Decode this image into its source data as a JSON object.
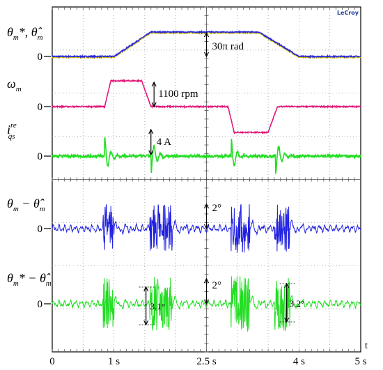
{
  "chart_data": {
    "type": "line",
    "brand": "LeCroy",
    "x_axis": {
      "label": "t",
      "unit": "s",
      "range": [
        0,
        5
      ],
      "ticks": [
        "0",
        "1 s",
        "2.5 s",
        "4 s",
        "5 s"
      ]
    },
    "grid": true,
    "channels": [
      {
        "id": "theta",
        "label_main": "θ",
        "label_sub": "m",
        "label_rest": "*, θ̂",
        "label_sub2": "m",
        "color": "#2a2ad8",
        "color2": "#d9c400",
        "zero_label": "0",
        "annotation": "30π rad",
        "profile": [
          [
            0,
            0
          ],
          [
            1.0,
            0
          ],
          [
            1.6,
            1
          ],
          [
            3.35,
            1
          ],
          [
            4.0,
            0
          ],
          [
            5,
            0
          ]
        ],
        "profile_unit": "fraction of 30π rad"
      },
      {
        "id": "omega",
        "label_main": "ω",
        "label_sub": "m",
        "color": "#e0197a",
        "zero_label": "0",
        "annotation": "1100 rpm",
        "profile": [
          [
            0,
            0
          ],
          [
            0.85,
            0
          ],
          [
            0.95,
            1
          ],
          [
            1.45,
            1
          ],
          [
            1.6,
            0
          ],
          [
            2.85,
            0
          ],
          [
            2.95,
            -1
          ],
          [
            3.5,
            -1
          ],
          [
            3.65,
            0
          ],
          [
            5,
            0
          ]
        ],
        "profile_unit": "fraction of 1100 rpm"
      },
      {
        "id": "iqs",
        "label_main": "i",
        "label_sub": "qs",
        "label_sup": "re",
        "color": "#22dd22",
        "zero_label": "0",
        "annotation": "4 A",
        "spikes_s": [
          0.85,
          1.6,
          2.9,
          3.62
        ]
      },
      {
        "id": "err1",
        "label_main": "θ",
        "label_sub": "m",
        "label_rest": " − θ̂",
        "label_sub2": "m",
        "color": "#2020e0",
        "zero_label": "0",
        "annotation": "2°",
        "bursts_s": [
          [
            0.82,
            1.0
          ],
          [
            1.58,
            1.95
          ],
          [
            2.9,
            3.2
          ],
          [
            3.6,
            3.85
          ]
        ]
      },
      {
        "id": "err2",
        "label_main": "θ",
        "label_sub": "m",
        "label_rest": "* − θ̂",
        "label_sub2": "m",
        "color": "#22dd22",
        "zero_label": "0",
        "annotation": "2°",
        "bursts_s": [
          [
            0.82,
            1.0
          ],
          [
            1.58,
            1.95
          ],
          [
            2.9,
            3.2
          ],
          [
            3.6,
            3.85
          ]
        ],
        "markers": [
          "3.1°",
          "3.2°"
        ]
      }
    ]
  }
}
